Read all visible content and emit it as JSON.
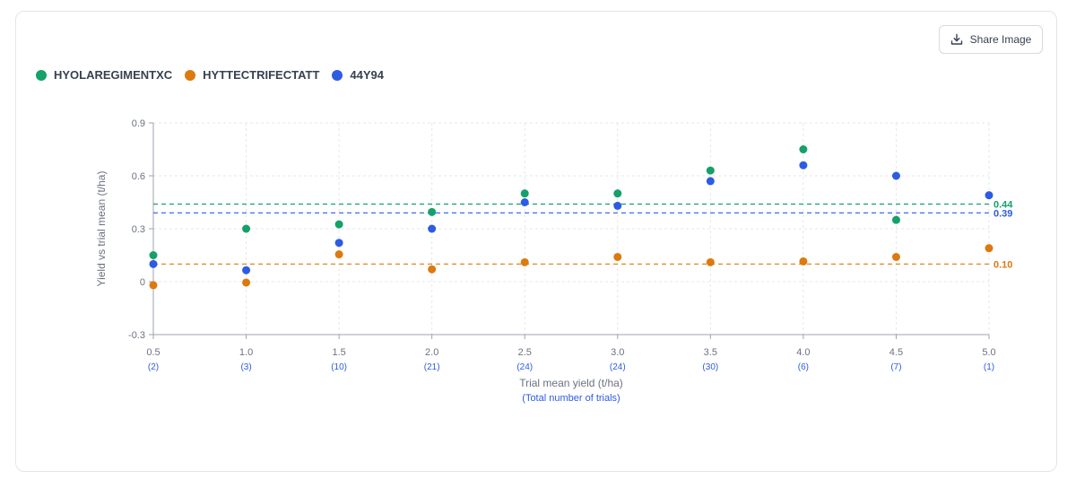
{
  "share_button": {
    "label": "Share Image",
    "icon": "download-icon"
  },
  "chart_data": {
    "type": "scatter",
    "title": "",
    "xlabel": "Trial mean yield (t/ha)",
    "xsublabel": "(Total number of trials)",
    "ylabel": "Yield vs trial mean (t/ha)",
    "xlim": [
      0.5,
      5.0
    ],
    "ylim": [
      -0.3,
      0.9
    ],
    "grid": true,
    "legend_position": "top-left",
    "x_ticks": [
      "0.5",
      "1.0",
      "1.5",
      "2.0",
      "2.5",
      "3.0",
      "3.5",
      "4.0",
      "4.5",
      "5.0"
    ],
    "x_tick_counts": [
      "(2)",
      "(3)",
      "(10)",
      "(21)",
      "(24)",
      "(24)",
      "(30)",
      "(6)",
      "(7)",
      "(1)"
    ],
    "y_ticks": [
      "-0.3",
      "0",
      "0.3",
      "0.6",
      "0.9"
    ],
    "x": [
      0.5,
      1.0,
      1.5,
      2.0,
      2.5,
      3.0,
      3.5,
      4.0,
      4.5,
      5.0
    ],
    "series": [
      {
        "name": "HYOLAREGIMENTXC",
        "color": "#16a06a",
        "values": [
          0.15,
          0.3,
          0.325,
          0.395,
          0.5,
          0.5,
          0.63,
          0.75,
          0.35,
          null
        ],
        "mean": 0.44,
        "mean_label": "0.44"
      },
      {
        "name": "HYTTECTRIFECTATT",
        "color": "#dc7a0f",
        "values": [
          -0.02,
          -0.005,
          0.155,
          0.07,
          0.11,
          0.14,
          0.11,
          0.115,
          0.14,
          0.19
        ],
        "mean": 0.1,
        "mean_label": "0.10"
      },
      {
        "name": "44Y94",
        "color": "#2d5be3",
        "values": [
          0.1,
          0.065,
          0.22,
          0.3,
          0.45,
          0.43,
          0.57,
          0.66,
          0.6,
          0.49
        ],
        "mean": 0.39,
        "mean_label": "0.39"
      }
    ]
  }
}
